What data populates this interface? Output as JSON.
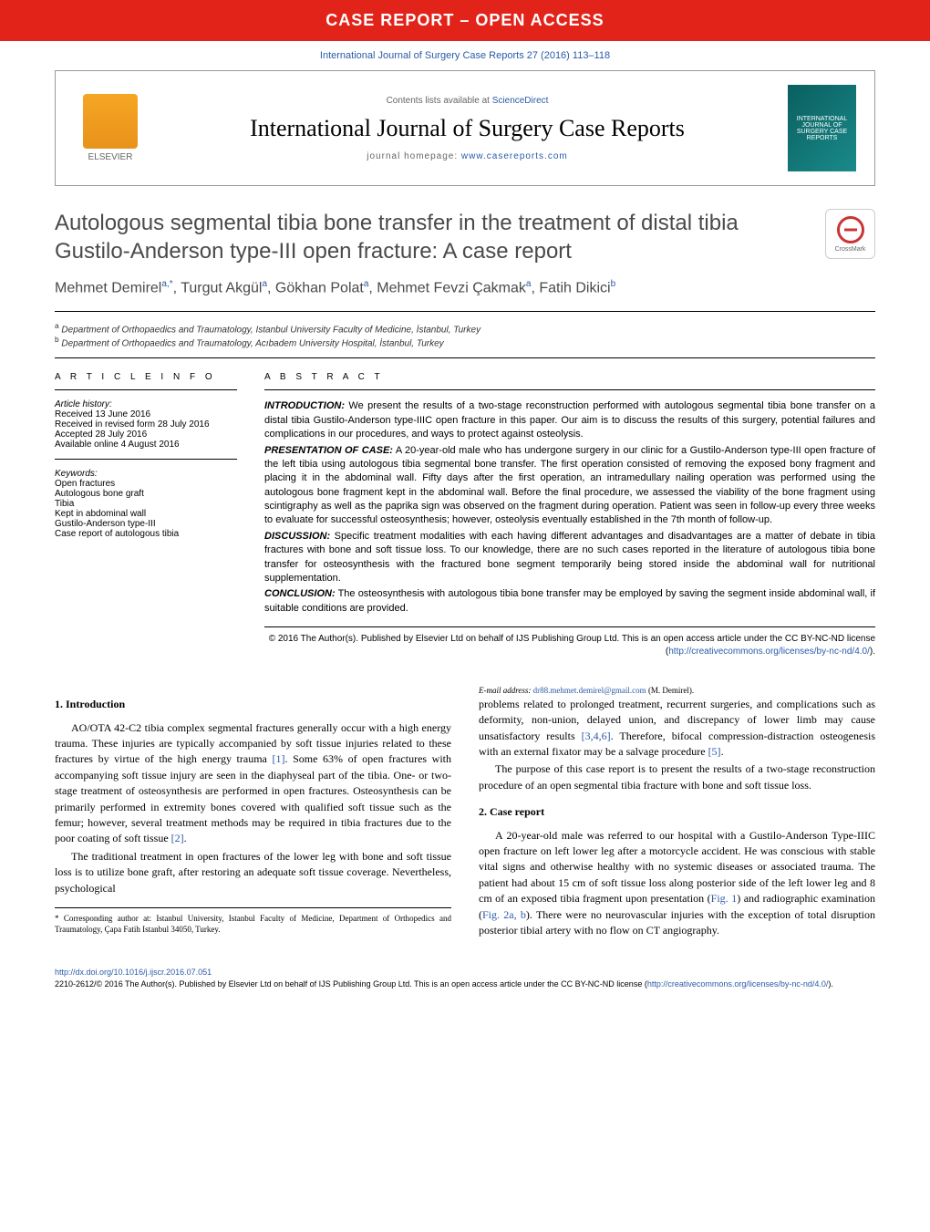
{
  "banner": {
    "text": "CASE REPORT – OPEN ACCESS",
    "bg_color": "#e2231a",
    "text_color": "#ffffff"
  },
  "citation": "International Journal of Surgery Case Reports 27 (2016) 113–118",
  "header": {
    "contents_prefix": "Contents lists available at ",
    "contents_link": "ScienceDirect",
    "journal_name": "International Journal of Surgery Case Reports",
    "homepage_prefix": "journal homepage: ",
    "homepage_link": "www.casereports.com",
    "publisher": "ELSEVIER",
    "cover_text": "INTERNATIONAL JOURNAL OF SURGERY CASE REPORTS"
  },
  "article": {
    "title": "Autologous segmental tibia bone transfer in the treatment of distal tibia Gustilo-Anderson type-III open fracture: A case report",
    "crossmark": "CrossMark",
    "authors_html": "Mehmet Demirel<sup>a,*</sup>, Turgut Akgül<sup>a</sup>, Gökhan Polat<sup>a</sup>, Mehmet Fevzi Çakmak<sup>a</sup>, Fatih Dikici<sup>b</sup>",
    "affiliations": [
      {
        "sup": "a",
        "text": "Department of Orthopaedics and Traumatology, Istanbul University Faculty of Medicine, İstanbul, Turkey"
      },
      {
        "sup": "b",
        "text": "Department of Orthopaedics and Traumatology, Acıbadem University Hospital, İstanbul, Turkey"
      }
    ]
  },
  "info": {
    "header": "A R T I C L E   I N F O",
    "history_label": "Article history:",
    "history": [
      "Received 13 June 2016",
      "Received in revised form 28 July 2016",
      "Accepted 28 July 2016",
      "Available online 4 August 2016"
    ],
    "keywords_label": "Keywords:",
    "keywords": [
      "Open fractures",
      "Autologous bone graft",
      "Tibia",
      "Kept in abdominal wall",
      "Gustilo-Anderson type-III",
      "Case report of autologous tibia"
    ]
  },
  "abstract": {
    "header": "A B S T R A C T",
    "sections": [
      {
        "label": "INTRODUCTION:",
        "text": "We present the results of a two-stage reconstruction performed with autologous segmental tibia bone transfer on a distal tibia Gustilo-Anderson type-IIIC open fracture in this paper. Our aim is to discuss the results of this surgery, potential failures and complications in our procedures, and ways to protect against osteolysis."
      },
      {
        "label": "PRESENTATION OF CASE:",
        "text": "A 20-year-old male who has undergone surgery in our clinic for a Gustilo-Anderson type-III open fracture of the left tibia using autologous tibia segmental bone transfer. The first operation consisted of removing the exposed bony fragment and placing it in the abdominal wall. Fifty days after the first operation, an intramedullary nailing operation was performed using the autologous bone fragment kept in the abdominal wall. Before the final procedure, we assessed the viability of the bone fragment using scintigraphy as well as the paprika sign was observed on the fragment during operation. Patient was seen in follow-up every three weeks to evaluate for successful osteosynthesis; however, osteolysis eventually established in the 7th month of follow-up."
      },
      {
        "label": "DISCUSSION:",
        "text": "Specific treatment modalities with each having different advantages and disadvantages are a matter of debate in tibia fractures with bone and soft tissue loss. To our knowledge, there are no such cases reported in the literature of autologous tibia bone transfer for osteosynthesis with the fractured bone segment temporarily being stored inside the abdominal wall for nutritional supplementation."
      },
      {
        "label": "CONCLUSION:",
        "text": "The osteosynthesis with autologous tibia bone transfer may be employed by saving the segment inside abdominal wall, if suitable conditions are provided."
      }
    ],
    "copyright": "© 2016 The Author(s). Published by Elsevier Ltd on behalf of IJS Publishing Group Ltd. This is an open access article under the CC BY-NC-ND license (",
    "copyright_link": "http://creativecommons.org/licenses/by-nc-nd/4.0/",
    "copyright_close": ")."
  },
  "body": {
    "s1_heading": "1. Introduction",
    "s1_p1": "AO/OTA 42-C2 tibia complex segmental fractures generally occur with a high energy trauma. These injuries are typically accompanied by soft tissue injuries related to these fractures by virtue of the high energy trauma [1]. Some 63% of open fractures with accompanying soft tissue injury are seen in the diaphyseal part of the tibia. One- or two-stage treatment of osteosynthesis are performed in open fractures. Osteosynthesis can be primarily performed in extremity bones covered with qualified soft tissue such as the femur; however, several treatment methods may be required in tibia fractures due to the poor coating of soft tissue [2].",
    "s1_p2": "The traditional treatment in open fractures of the lower leg with bone and soft tissue loss is to utilize bone graft, after restoring an adequate soft tissue coverage. Nevertheless, psychological",
    "s1_p3": "problems related to prolonged treatment, recurrent surgeries, and complications such as deformity, non-union, delayed union, and discrepancy of lower limb may cause unsatisfactory results [3,4,6]. Therefore, bifocal compression-distraction osteogenesis with an external fixator may be a salvage procedure [5].",
    "s1_p4": "The purpose of this case report is to present the results of a two-stage reconstruction procedure of an open segmental tibia fracture with bone and soft tissue loss.",
    "s2_heading": "2. Case report",
    "s2_p1": "A 20-year-old male was referred to our hospital with a Gustilo-Anderson Type-IIIC open fracture on left lower leg after a motorcycle accident. He was conscious with stable vital signs and otherwise healthy with no systemic diseases or associated trauma. The patient had about 15 cm of soft tissue loss along posterior side of the left lower leg and 8 cm of an exposed tibia fragment upon presentation (Fig. 1) and radiographic examination (Fig. 2a, b). There were no neurovascular injuries with the exception of total disruption posterior tibial artery with no flow on CT angiography.",
    "footnote_marker": "*",
    "footnote_text": "Corresponding author at: Istanbul University, Istanbul Faculty of Medicine, Department of Orthopedics and Traumatology, Çapa Fatih Istanbul 34050, Turkey.",
    "footnote_email_label": "E-mail address:",
    "footnote_email": "dr88.mehmet.demirel@gmail.com",
    "footnote_email_suffix": "(M. Demirel)."
  },
  "footer": {
    "doi": "http://dx.doi.org/10.1016/j.ijscr.2016.07.051",
    "issn_line_prefix": "2210-2612/© 2016 The Author(s). Published by Elsevier Ltd on behalf of IJS Publishing Group Ltd. This is an open access article under the CC BY-NC-ND license (",
    "issn_link": "http://creativecommons.org/licenses/by-nc-nd/4.0/",
    "issn_close": ")."
  },
  "colors": {
    "link": "#2a5aa8",
    "text": "#000000",
    "banner_bg": "#e2231a"
  }
}
